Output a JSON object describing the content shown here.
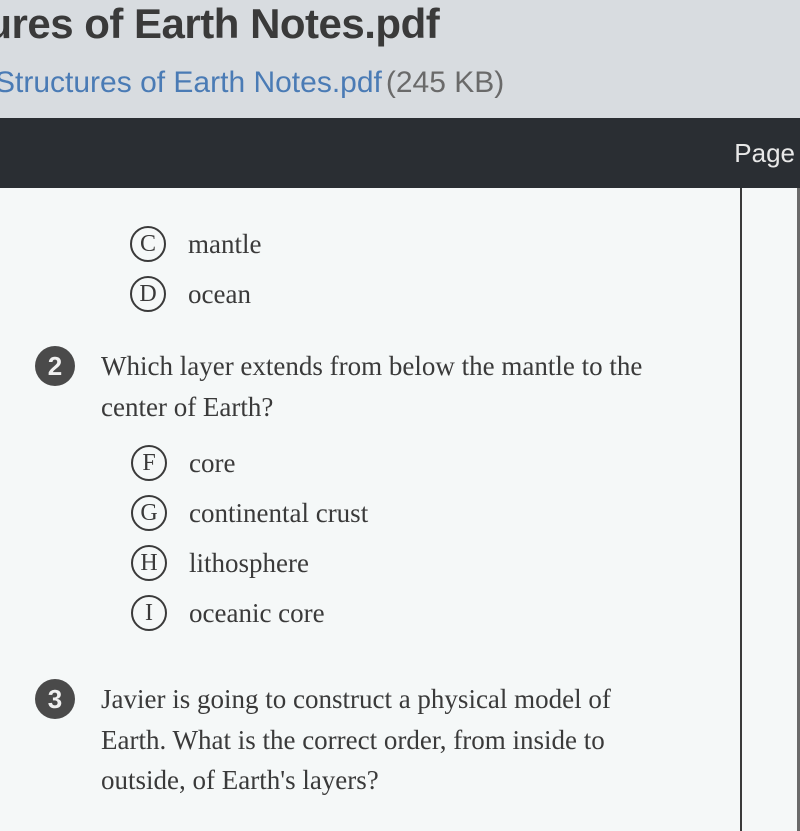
{
  "header": {
    "title_fragment": "ctures of Earth Notes.pdf",
    "file_link_fragment": "e Structures of Earth Notes.pdf",
    "file_size": "(245 KB)"
  },
  "toolbar": {
    "page_label": "Page"
  },
  "doc": {
    "partial_options": [
      {
        "letter": "C",
        "text": "mantle"
      },
      {
        "letter": "D",
        "text": "ocean"
      }
    ],
    "question2": {
      "number": "2",
      "text": "Which layer extends from below the mantle to the center of Earth?",
      "options": [
        {
          "letter": "F",
          "text": "core"
        },
        {
          "letter": "G",
          "text": "continental crust"
        },
        {
          "letter": "H",
          "text": "lithosphere"
        },
        {
          "letter": "I",
          "text": "oceanic core"
        }
      ]
    },
    "question3": {
      "number": "3",
      "text": "Javier is going to construct a physical model of Earth. What is the correct order, from inside to outside, of Earth's layers?"
    }
  },
  "colors": {
    "background": "#d8dce0",
    "doc_bg": "#f5f8f8",
    "toolbar_bg": "#2a2e33",
    "text": "#3a3a3a",
    "link": "#4a7bb5",
    "muted": "#6a6a6a",
    "number_bg": "#4a4a4a"
  }
}
